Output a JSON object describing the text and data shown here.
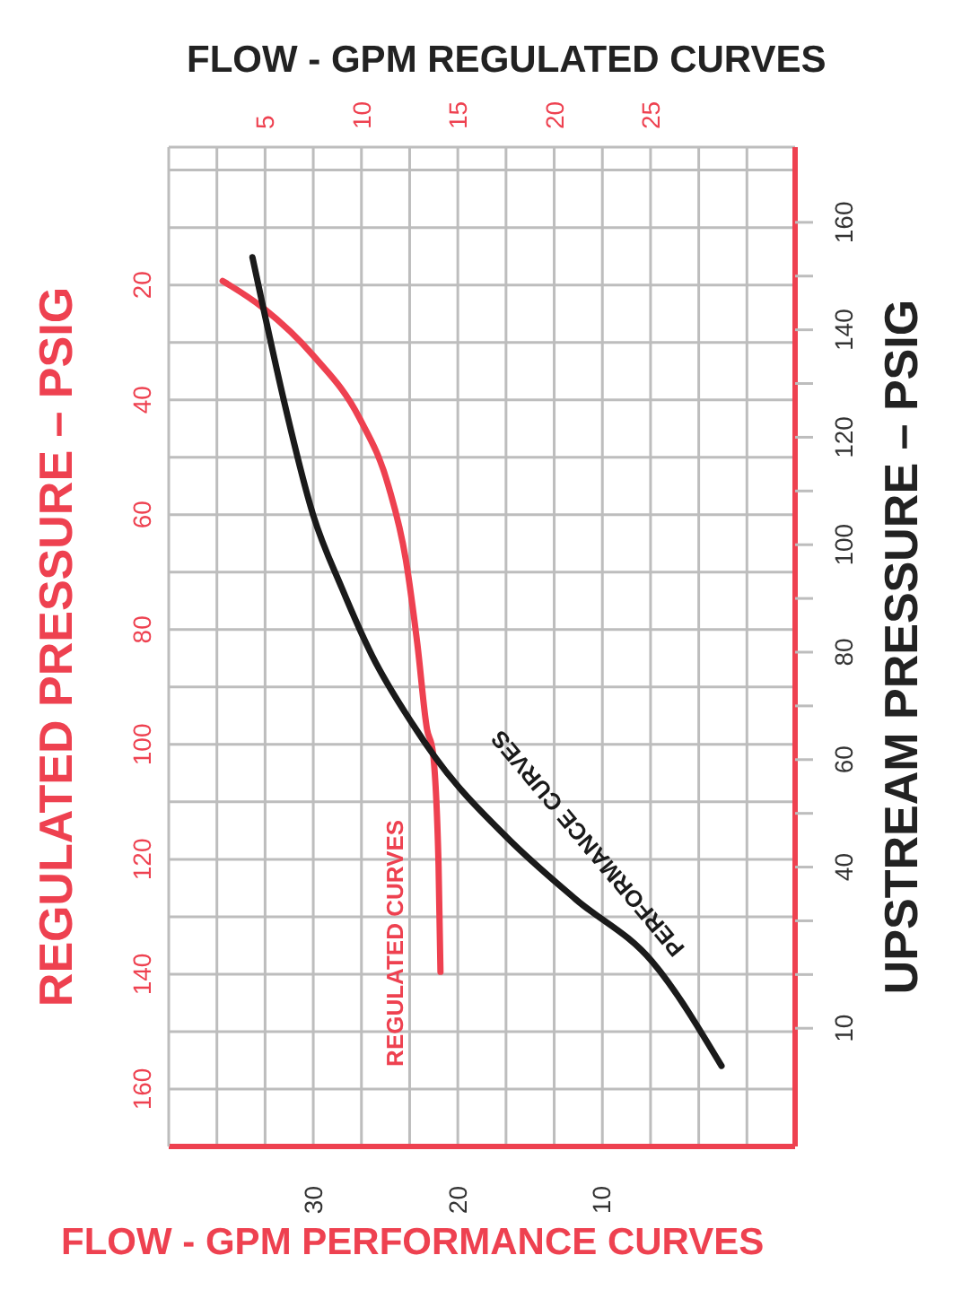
{
  "chart_data": {
    "type": "line",
    "x2label": "FLOW - GPM REGULATED CURVES",
    "xlabel": "FLOW - GPM PERFORMANCE CURVES",
    "ylabel": "REGULATED PRESSURE – PSIG",
    "y2label": "UPSTREAM PRESSURE – PSIG",
    "xlim": [
      40,
      -3.4
    ],
    "xticks": [
      30,
      20,
      10
    ],
    "x2lim": [
      0,
      32.5
    ],
    "x2ticks": [
      {
        "value": 0,
        "label": null
      },
      {
        "value": 2.5,
        "label": null
      },
      5,
      {
        "value": 7.5,
        "label": null
      },
      10,
      {
        "value": 12.5,
        "label": null
      },
      15,
      {
        "value": 17.5,
        "label": null
      },
      20,
      {
        "value": 22.5,
        "label": null
      },
      25,
      {
        "value": 27.5,
        "label": null
      },
      {
        "value": 30,
        "label": null
      }
    ],
    "ylim": [
      170,
      -4
    ],
    "yticks": [
      {
        "value": 0,
        "label": null
      },
      {
        "value": 10,
        "label": null
      },
      20,
      {
        "value": 30,
        "label": null
      },
      40,
      {
        "value": 50,
        "label": null
      },
      60,
      {
        "value": 70,
        "label": null
      },
      80,
      {
        "value": 90,
        "label": null
      },
      100,
      {
        "value": 110,
        "label": null
      },
      120,
      {
        "value": 130,
        "label": null
      },
      140,
      {
        "value": 150,
        "label": null
      },
      160
    ],
    "y2lim": [
      -12,
      174
    ],
    "y2ticks": [
      160,
      {
        "value": 150,
        "label": null
      },
      140,
      {
        "value": 130,
        "label": null
      },
      120,
      {
        "value": 110,
        "label": null
      },
      100,
      {
        "value": 90,
        "label": null
      },
      80,
      {
        "value": 70,
        "label": null
      },
      60,
      {
        "value": 50,
        "label": null
      },
      40,
      {
        "value": 30,
        "label": null
      },
      {
        "value": 20,
        "label": null
      },
      10
    ],
    "grid": true,
    "series": [
      {
        "name": "REGULATED CURVES",
        "color": "#ee4150",
        "axis": "x2",
        "x": [
          2.8,
          4.9,
          7.5,
          9.9,
          11.4,
          12.3,
          12.9,
          13.4,
          13.7,
          14.0,
          14.1
        ],
        "values": [
          19.3,
          24,
          32.3,
          43.2,
          55,
          67.8,
          82.5,
          97.3,
          101.2,
          121,
          139.6
        ]
      },
      {
        "name": "PERFORMANCE CURVES",
        "color": "#1a1a1a",
        "axis": "y2",
        "x": [
          34.2,
          33.4,
          32.0,
          30.0,
          28.0,
          25.9,
          23.1,
          21.5,
          16.6,
          11.8,
          6.5,
          1.7
        ],
        "values": [
          153.5,
          143.5,
          126.6,
          105.6,
          91.9,
          79.3,
          66.6,
          60.3,
          45.6,
          34,
          22.4,
          3
        ]
      }
    ]
  }
}
